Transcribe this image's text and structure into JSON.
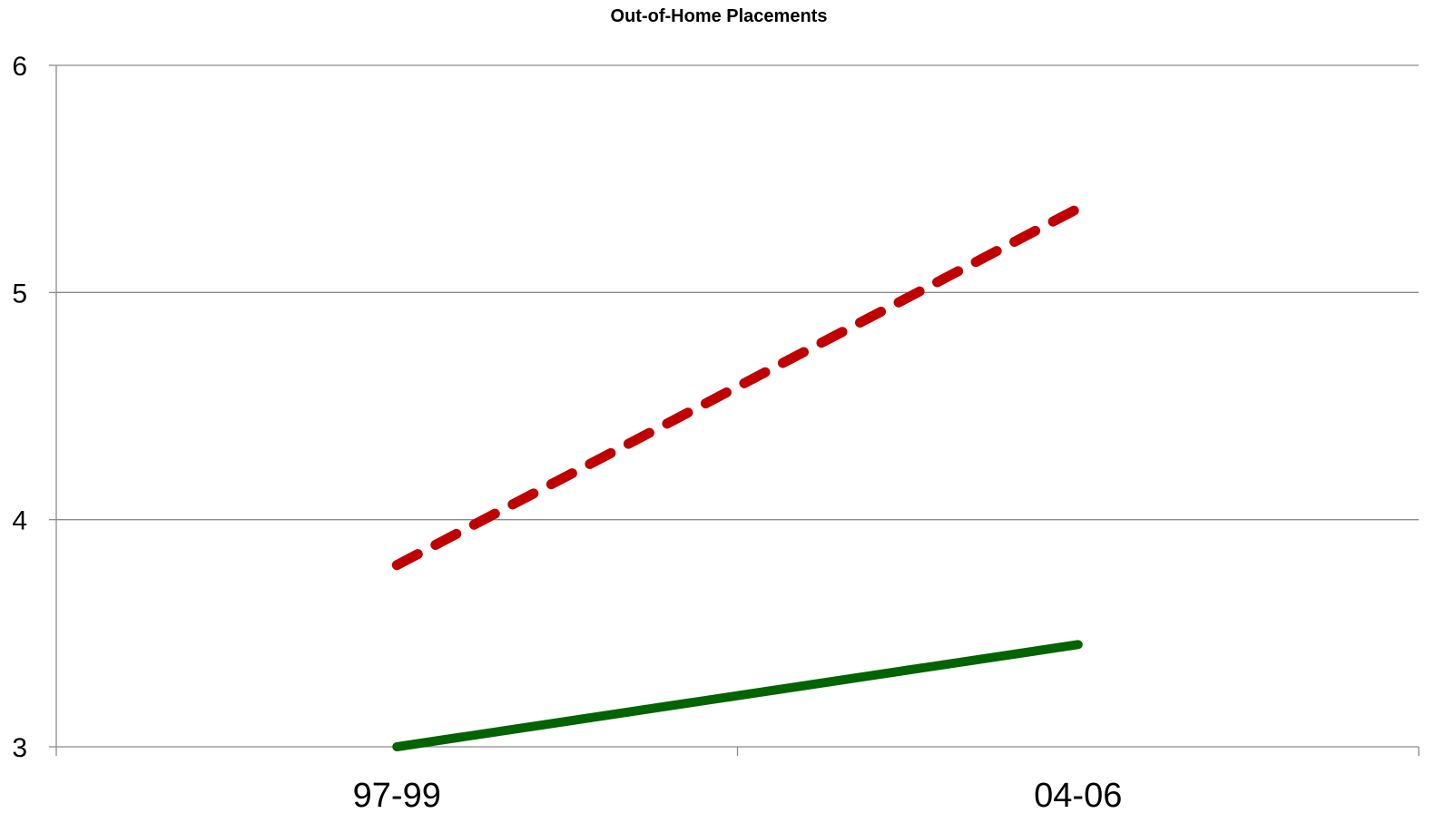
{
  "chart_data": {
    "type": "line",
    "title": "Out-of-Home Placements",
    "xlabel": "",
    "ylabel": "",
    "categories": [
      "97-99",
      "04-06"
    ],
    "y_ticks": [
      "3",
      "4",
      "5",
      "6"
    ],
    "ylim": [
      3,
      6
    ],
    "grid": true,
    "legend": "none",
    "series": [
      {
        "values": [
          3.8,
          5.37
        ],
        "color": "#c00000",
        "line_style": "dashed"
      },
      {
        "values": [
          3.0,
          3.45
        ],
        "color": "#006400",
        "line_style": "solid"
      }
    ]
  }
}
